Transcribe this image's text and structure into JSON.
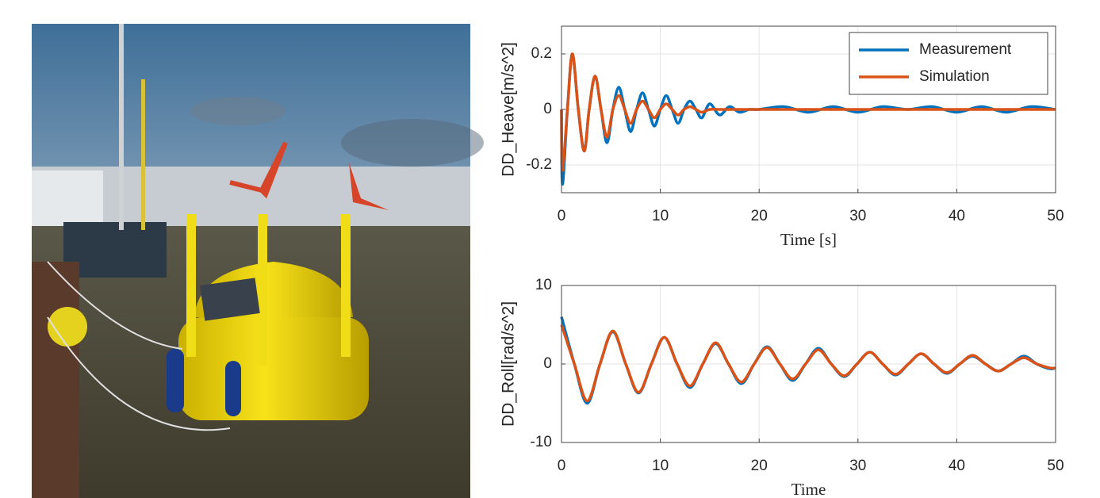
{
  "chart_data": [
    {
      "type": "line",
      "xlabel": "Time [s]",
      "ylabel": "DD_Heave[m/s^2]",
      "x": [
        0,
        0.1,
        0.6,
        1.1,
        1.7,
        2.3,
        2.8,
        3.4,
        4.0,
        4.6,
        5.2,
        5.8,
        6.4,
        7.0,
        7.6,
        8.2,
        8.8,
        9.4,
        10.0,
        10.6,
        11.2,
        11.8,
        12.4,
        13.0,
        13.6,
        14.2,
        15,
        16,
        17,
        18,
        19,
        20,
        22.5,
        25,
        27.5,
        30,
        32.5,
        35,
        37.5,
        40,
        42.5,
        45,
        47.5,
        50
      ],
      "series": [
        {
          "name": "Measurement",
          "color": "#0072BD",
          "values": [
            0,
            -0.27,
            0,
            0.2,
            0,
            -0.15,
            0,
            0.12,
            0,
            -0.12,
            0,
            0.08,
            0,
            -0.08,
            0,
            0.06,
            0,
            -0.06,
            0,
            0.05,
            0,
            -0.05,
            0,
            0.03,
            0,
            -0.03,
            0.02,
            -0.02,
            0.01,
            -0.01,
            0,
            0,
            0.01,
            -0.01,
            0.01,
            -0.01,
            0.01,
            0,
            0.01,
            -0.01,
            0.01,
            -0.01,
            0.01,
            0
          ]
        },
        {
          "name": "Simulation",
          "color": "#D95319",
          "values": [
            0,
            -0.22,
            0,
            0.2,
            0,
            -0.15,
            0,
            0.12,
            0,
            -0.1,
            0,
            0.05,
            0,
            -0.05,
            0,
            0.03,
            0,
            -0.03,
            0,
            0.02,
            0,
            -0.02,
            0,
            0.01,
            0,
            -0.01,
            0,
            0,
            0,
            0,
            0,
            0,
            0,
            0,
            0,
            0,
            0,
            0,
            0,
            0,
            0,
            0,
            0,
            0
          ]
        }
      ],
      "xlim": [
        0,
        50
      ],
      "xticks": [
        0,
        10,
        20,
        30,
        40,
        50
      ],
      "ylim": [
        -0.3,
        0.3
      ],
      "yticks": [
        -0.2,
        0,
        0.2
      ],
      "grid": true,
      "legend": "upper right"
    },
    {
      "type": "line",
      "xlabel": "Time",
      "ylabel": "DD_Roll[rad/s^2]",
      "x": [
        0,
        1.3,
        2.6,
        3.9,
        5.2,
        6.5,
        7.8,
        9.1,
        10.4,
        11.7,
        13,
        14.3,
        15.6,
        16.9,
        18.2,
        19.5,
        20.8,
        22.1,
        23.4,
        24.7,
        26,
        27.3,
        28.6,
        29.9,
        31.2,
        32.5,
        33.8,
        35.1,
        36.4,
        37.7,
        39,
        40.3,
        41.6,
        42.9,
        44.2,
        45.5,
        46.8,
        48.1,
        49.4,
        50
      ],
      "series": [
        {
          "color": "#0072BD",
          "values": [
            6,
            0,
            -5,
            0,
            4.1,
            0,
            -3.7,
            0,
            3.4,
            0,
            -3,
            0,
            2.6,
            0,
            -2.5,
            0,
            2.2,
            0,
            -2.1,
            0,
            2,
            0,
            -1.6,
            0,
            1.5,
            0,
            -1.4,
            0,
            1.3,
            0,
            -1.2,
            0,
            1,
            0,
            -0.9,
            0,
            1,
            0,
            -0.6,
            -0.5
          ]
        },
        {
          "color": "#D95319",
          "values": [
            5,
            0,
            -4.7,
            0,
            4.2,
            0,
            -3.6,
            0,
            3.4,
            0,
            -2.8,
            0,
            2.7,
            0,
            -2.3,
            0,
            2.1,
            0,
            -1.9,
            0,
            1.8,
            0,
            -1.5,
            0,
            1.5,
            0,
            -1.3,
            0,
            1.3,
            0,
            -1.1,
            0,
            1.1,
            0,
            -0.9,
            0,
            0.8,
            0,
            -0.5,
            -0.5
          ]
        }
      ],
      "xlim": [
        0,
        50
      ],
      "xticks": [
        0,
        10,
        20,
        30,
        40,
        50
      ],
      "ylim": [
        -10,
        10
      ],
      "yticks": [
        -10,
        0,
        10
      ],
      "grid": true
    }
  ]
}
